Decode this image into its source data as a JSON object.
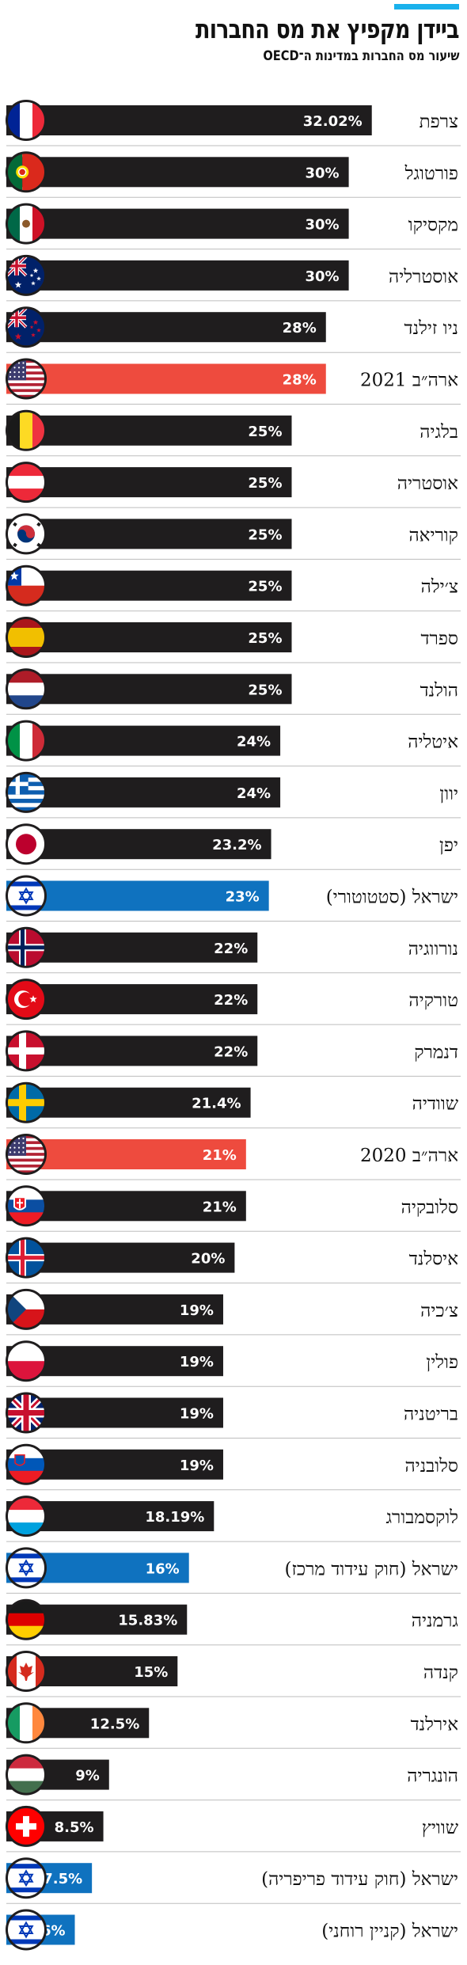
{
  "title": "ביידן מקפיץ את מס החברות",
  "subtitle": "שיעור מס החברות  במדינות ה־OECD",
  "colors": {
    "accent": "#19b1ec",
    "default_bar": "#1f1d1e",
    "usa_bar": "#ee4b3e",
    "israel_bar": "#0f72bf"
  },
  "chart_data": {
    "type": "bar",
    "orientation": "horizontal",
    "title": "ביידן מקפיץ את מס החברות",
    "subtitle": "שיעור מס החברות  במדינות ה־OECD",
    "xlim": [
      0,
      40
    ],
    "grid": false,
    "categories": [
      "צרפת",
      "פורטוגל",
      "מקסיקו",
      "אוסטרליה",
      "ניו זילנד",
      "ארה״ב 2021",
      "בלגיה",
      "אוסטריה",
      "קוריאה",
      "צ׳ילה",
      "ספרד",
      "הולנד",
      "איטליה",
      "יוון",
      "יפן",
      "ישראל (סטטוטורי)",
      "נורווגיה",
      "טורקיה",
      "דנמרק",
      "שוודיה",
      "ארה״ב 2020",
      "סלובקיה",
      "איסלנד",
      "צ׳כיה",
      "פולין",
      "בריטניה",
      "סלובניה",
      "לוקסמבורג",
      "ישראל (חוק עידוד מרכז)",
      "גרמניה",
      "קנדה",
      "אירלנד",
      "הונגריה",
      "שוויץ",
      "ישראל (חוק עידוד פריפריה)",
      "ישראל (קניין רוחני)"
    ],
    "values": [
      32.02,
      30,
      30,
      30,
      28,
      28,
      25,
      25,
      25,
      25,
      25,
      25,
      24,
      24,
      23.2,
      23,
      22,
      22,
      22,
      21.4,
      21,
      21,
      20,
      19,
      19,
      19,
      19,
      18.19,
      16,
      15.83,
      15,
      12.5,
      9,
      8.5,
      7.5,
      6
    ],
    "value_labels": [
      "32.02%",
      "30%",
      "30%",
      "30%",
      "28%",
      "28%",
      "25%",
      "25%",
      "25%",
      "25%",
      "25%",
      "25%",
      "24%",
      "24%",
      "23.2%",
      "23%",
      "22%",
      "22%",
      "22%",
      "21.4%",
      "21%",
      "21%",
      "20%",
      "19%",
      "19%",
      "19%",
      "19%",
      "18.19%",
      "16%",
      "15.83%",
      "15%",
      "12.5%",
      "9%",
      "8.5%",
      "7.5%",
      "6%"
    ],
    "flags": [
      "france-flag-icon",
      "portugal-flag-icon",
      "mexico-flag-icon",
      "australia-flag-icon",
      "new-zealand-flag-icon",
      "usa-flag-icon",
      "belgium-flag-icon",
      "austria-flag-icon",
      "korea-flag-icon",
      "chile-flag-icon",
      "spain-flag-icon",
      "netherlands-flag-icon",
      "italy-flag-icon",
      "greece-flag-icon",
      "japan-flag-icon",
      "israel-flag-icon",
      "norway-flag-icon",
      "turkey-flag-icon",
      "denmark-flag-icon",
      "sweden-flag-icon",
      "usa-flag-icon",
      "slovakia-flag-icon",
      "iceland-flag-icon",
      "czech-flag-icon",
      "poland-flag-icon",
      "uk-flag-icon",
      "slovenia-flag-icon",
      "luxembourg-flag-icon",
      "israel-flag-icon",
      "germany-flag-icon",
      "canada-flag-icon",
      "ireland-flag-icon",
      "hungary-flag-icon",
      "switzerland-flag-icon",
      "israel-flag-icon",
      "israel-flag-icon"
    ],
    "highlights": [
      "default",
      "default",
      "default",
      "default",
      "default",
      "usa",
      "default",
      "default",
      "default",
      "default",
      "default",
      "default",
      "default",
      "default",
      "default",
      "israel",
      "default",
      "default",
      "default",
      "default",
      "usa",
      "default",
      "default",
      "default",
      "default",
      "default",
      "default",
      "default",
      "israel",
      "default",
      "default",
      "default",
      "default",
      "default",
      "israel",
      "israel"
    ]
  }
}
